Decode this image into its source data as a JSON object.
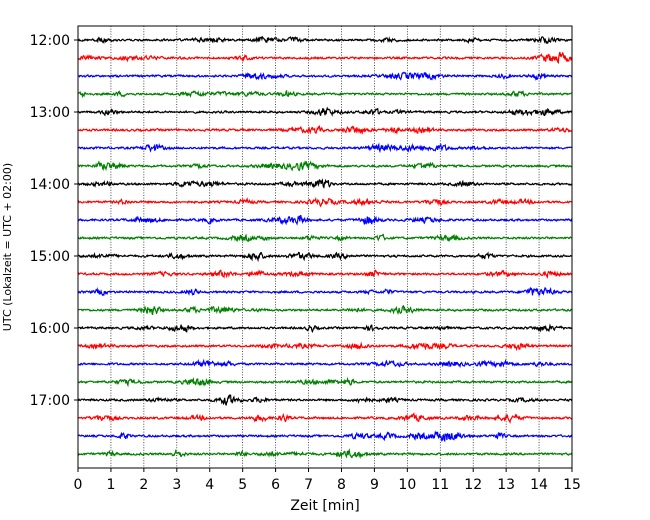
{
  "chart_data": {
    "type": "line",
    "title": "",
    "xlabel": "Zeit  [min]",
    "ylabel": "UTC (Lokalzeit = UTC + 02:00)",
    "xlim": [
      0,
      15
    ],
    "x_ticks": [
      0,
      1,
      2,
      3,
      4,
      5,
      6,
      7,
      8,
      9,
      10,
      11,
      12,
      13,
      14,
      15
    ],
    "y_tick_labels": [
      "12:00",
      "13:00",
      "14:00",
      "15:00",
      "16:00",
      "17:00"
    ],
    "grid": "vertical-dotted",
    "legend": "none",
    "trace_interval_minutes": 15,
    "trace_colors": [
      "#000000",
      "#ff0000",
      "#0000ff",
      "#008000"
    ],
    "series": [
      {
        "start": "12:00"
      },
      {
        "start": "12:15"
      },
      {
        "start": "12:30"
      },
      {
        "start": "12:45"
      },
      {
        "start": "13:00"
      },
      {
        "start": "13:15"
      },
      {
        "start": "13:30"
      },
      {
        "start": "13:45"
      },
      {
        "start": "14:00"
      },
      {
        "start": "14:15"
      },
      {
        "start": "14:30"
      },
      {
        "start": "14:45"
      },
      {
        "start": "15:00"
      },
      {
        "start": "15:15"
      },
      {
        "start": "15:30"
      },
      {
        "start": "15:45"
      },
      {
        "start": "16:00"
      },
      {
        "start": "16:15"
      },
      {
        "start": "16:30"
      },
      {
        "start": "16:45"
      },
      {
        "start": "17:00"
      },
      {
        "start": "17:15"
      },
      {
        "start": "17:30"
      },
      {
        "start": "17:45"
      }
    ]
  }
}
